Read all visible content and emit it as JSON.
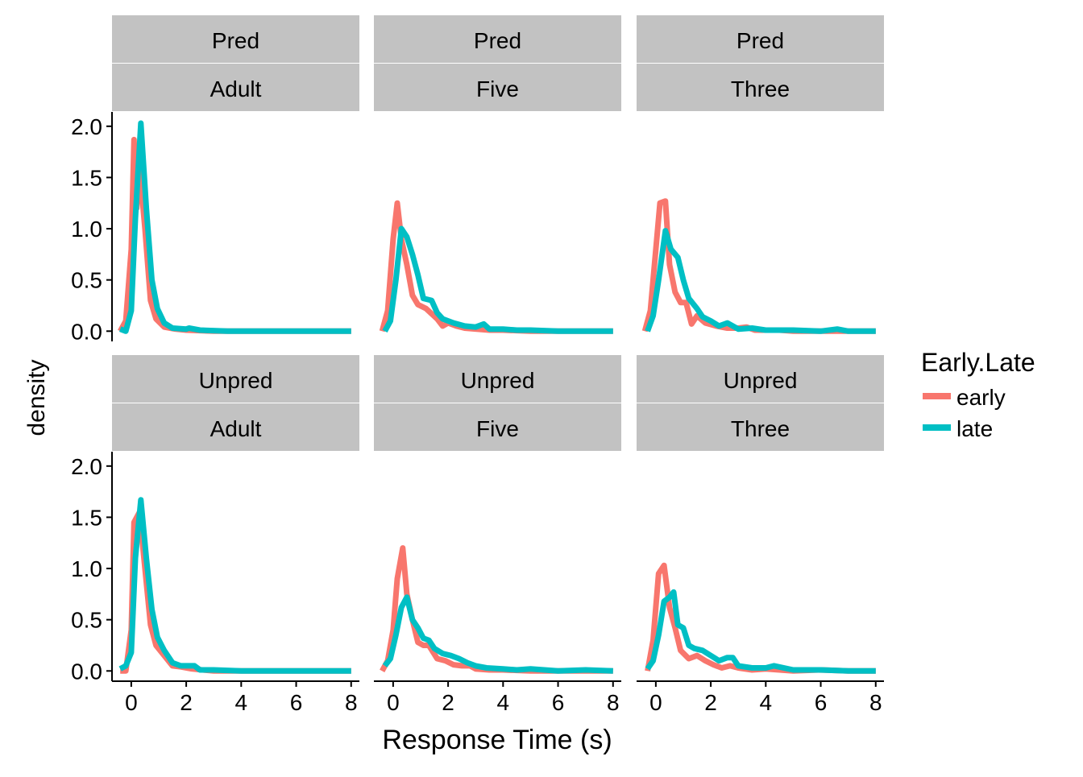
{
  "chart_data": {
    "type": "line",
    "xlabel": "Response Time (s)",
    "ylabel": "density",
    "xlim": [
      -0.7,
      8.3
    ],
    "ylim": [
      -0.1,
      2.14
    ],
    "x_ticks": [
      0,
      2,
      4,
      6,
      8
    ],
    "y_ticks": [
      0.0,
      0.5,
      1.0,
      1.5,
      2.0
    ],
    "x_tick_labels": [
      "0",
      "2",
      "4",
      "6",
      "8"
    ],
    "y_tick_labels": [
      "0.0",
      "0.5",
      "1.0",
      "1.5",
      "2.0"
    ],
    "legend": {
      "title": "Early.Late",
      "position": "right",
      "entries": [
        {
          "label": "early",
          "color": "#F8766D"
        },
        {
          "label": "late",
          "color": "#00BFC4"
        }
      ]
    },
    "series_colors": {
      "early": "#F8766D",
      "late": "#00BFC4"
    },
    "panels": [
      {
        "condition": "Pred",
        "group": "Adult",
        "series": {
          "early": [
            [
              -0.4,
              0.0
            ],
            [
              -0.2,
              0.1
            ],
            [
              0.0,
              0.8
            ],
            [
              0.1,
              1.87
            ],
            [
              0.2,
              1.2
            ],
            [
              0.3,
              1.6
            ],
            [
              0.5,
              1.0
            ],
            [
              0.7,
              0.3
            ],
            [
              0.9,
              0.12
            ],
            [
              1.2,
              0.04
            ],
            [
              1.6,
              0.02
            ],
            [
              2.0,
              0.01
            ],
            [
              3.0,
              0.0
            ],
            [
              8.0,
              0.0
            ]
          ],
          "late": [
            [
              -0.4,
              0.02
            ],
            [
              -0.2,
              0.0
            ],
            [
              0.0,
              0.2
            ],
            [
              0.15,
              1.1
            ],
            [
              0.35,
              2.03
            ],
            [
              0.55,
              1.2
            ],
            [
              0.75,
              0.5
            ],
            [
              0.95,
              0.22
            ],
            [
              1.2,
              0.08
            ],
            [
              1.5,
              0.03
            ],
            [
              2.0,
              0.02
            ],
            [
              2.1,
              0.03
            ],
            [
              2.5,
              0.01
            ],
            [
              3.5,
              0.0
            ],
            [
              8.0,
              0.0
            ]
          ]
        }
      },
      {
        "condition": "Pred",
        "group": "Five",
        "series": {
          "early": [
            [
              -0.4,
              0.0
            ],
            [
              -0.2,
              0.2
            ],
            [
              0.0,
              0.9
            ],
            [
              0.15,
              1.25
            ],
            [
              0.3,
              0.9
            ],
            [
              0.5,
              0.65
            ],
            [
              0.7,
              0.35
            ],
            [
              0.9,
              0.26
            ],
            [
              1.2,
              0.22
            ],
            [
              1.6,
              0.12
            ],
            [
              1.8,
              0.05
            ],
            [
              2.0,
              0.08
            ],
            [
              2.3,
              0.05
            ],
            [
              2.6,
              0.03
            ],
            [
              3.0,
              0.02
            ],
            [
              3.5,
              0.01
            ],
            [
              4.0,
              0.01
            ],
            [
              5.0,
              0.0
            ],
            [
              8.0,
              0.0
            ]
          ],
          "late": [
            [
              -0.3,
              0.0
            ],
            [
              -0.1,
              0.1
            ],
            [
              0.1,
              0.5
            ],
            [
              0.3,
              1.0
            ],
            [
              0.5,
              0.92
            ],
            [
              0.7,
              0.75
            ],
            [
              0.9,
              0.55
            ],
            [
              1.1,
              0.32
            ],
            [
              1.4,
              0.3
            ],
            [
              1.6,
              0.18
            ],
            [
              1.8,
              0.12
            ],
            [
              2.2,
              0.08
            ],
            [
              2.6,
              0.05
            ],
            [
              3.0,
              0.04
            ],
            [
              3.3,
              0.07
            ],
            [
              3.5,
              0.02
            ],
            [
              4.0,
              0.02
            ],
            [
              4.5,
              0.01
            ],
            [
              5.0,
              0.01
            ],
            [
              6.0,
              0.0
            ],
            [
              8.0,
              0.0
            ]
          ]
        }
      },
      {
        "condition": "Pred",
        "group": "Three",
        "series": {
          "early": [
            [
              -0.4,
              0.0
            ],
            [
              -0.2,
              0.2
            ],
            [
              0.0,
              0.8
            ],
            [
              0.15,
              1.25
            ],
            [
              0.35,
              1.27
            ],
            [
              0.5,
              0.65
            ],
            [
              0.7,
              0.38
            ],
            [
              0.9,
              0.28
            ],
            [
              1.1,
              0.28
            ],
            [
              1.3,
              0.07
            ],
            [
              1.5,
              0.15
            ],
            [
              1.8,
              0.08
            ],
            [
              2.2,
              0.05
            ],
            [
              2.6,
              0.03
            ],
            [
              3.0,
              0.03
            ],
            [
              3.3,
              0.04
            ],
            [
              3.6,
              0.01
            ],
            [
              4.5,
              0.01
            ],
            [
              5.0,
              0.0
            ],
            [
              8.0,
              0.0
            ]
          ],
          "late": [
            [
              -0.3,
              0.0
            ],
            [
              -0.1,
              0.15
            ],
            [
              0.1,
              0.5
            ],
            [
              0.35,
              0.98
            ],
            [
              0.55,
              0.8
            ],
            [
              0.8,
              0.72
            ],
            [
              1.0,
              0.5
            ],
            [
              1.2,
              0.32
            ],
            [
              1.5,
              0.22
            ],
            [
              1.7,
              0.14
            ],
            [
              2.0,
              0.1
            ],
            [
              2.3,
              0.05
            ],
            [
              2.6,
              0.08
            ],
            [
              3.0,
              0.02
            ],
            [
              3.5,
              0.03
            ],
            [
              4.0,
              0.01
            ],
            [
              5.0,
              0.01
            ],
            [
              6.0,
              0.0
            ],
            [
              6.6,
              0.02
            ],
            [
              7.0,
              0.0
            ],
            [
              8.0,
              0.0
            ]
          ]
        }
      },
      {
        "condition": "Unpred",
        "group": "Adult",
        "series": {
          "early": [
            [
              -0.4,
              0.0
            ],
            [
              -0.2,
              0.0
            ],
            [
              0.0,
              0.4
            ],
            [
              0.1,
              1.45
            ],
            [
              0.3,
              1.55
            ],
            [
              0.5,
              1.0
            ],
            [
              0.7,
              0.45
            ],
            [
              0.9,
              0.25
            ],
            [
              1.2,
              0.15
            ],
            [
              1.5,
              0.05
            ],
            [
              1.8,
              0.04
            ],
            [
              2.2,
              0.02
            ],
            [
              3.0,
              0.0
            ],
            [
              8.0,
              0.0
            ]
          ],
          "late": [
            [
              -0.4,
              0.02
            ],
            [
              -0.2,
              0.05
            ],
            [
              0.0,
              0.18
            ],
            [
              0.15,
              1.1
            ],
            [
              0.35,
              1.67
            ],
            [
              0.55,
              1.1
            ],
            [
              0.75,
              0.6
            ],
            [
              0.95,
              0.33
            ],
            [
              1.2,
              0.2
            ],
            [
              1.5,
              0.08
            ],
            [
              1.8,
              0.05
            ],
            [
              2.0,
              0.05
            ],
            [
              2.3,
              0.05
            ],
            [
              2.5,
              0.01
            ],
            [
              3.0,
              0.01
            ],
            [
              4.0,
              0.0
            ],
            [
              8.0,
              0.0
            ]
          ]
        }
      },
      {
        "condition": "Unpred",
        "group": "Five",
        "series": {
          "early": [
            [
              -0.4,
              0.0
            ],
            [
              -0.2,
              0.1
            ],
            [
              0.0,
              0.4
            ],
            [
              0.15,
              0.9
            ],
            [
              0.35,
              1.2
            ],
            [
              0.5,
              0.75
            ],
            [
              0.7,
              0.5
            ],
            [
              0.9,
              0.28
            ],
            [
              1.1,
              0.25
            ],
            [
              1.3,
              0.25
            ],
            [
              1.6,
              0.12
            ],
            [
              1.9,
              0.1
            ],
            [
              2.2,
              0.06
            ],
            [
              2.5,
              0.05
            ],
            [
              2.8,
              0.05
            ],
            [
              3.0,
              0.02
            ],
            [
              3.5,
              0.01
            ],
            [
              4.0,
              0.01
            ],
            [
              5.0,
              0.0
            ],
            [
              8.0,
              0.0
            ]
          ],
          "late": [
            [
              -0.3,
              0.05
            ],
            [
              -0.1,
              0.12
            ],
            [
              0.1,
              0.35
            ],
            [
              0.3,
              0.62
            ],
            [
              0.5,
              0.72
            ],
            [
              0.7,
              0.5
            ],
            [
              0.9,
              0.42
            ],
            [
              1.1,
              0.32
            ],
            [
              1.3,
              0.3
            ],
            [
              1.5,
              0.22
            ],
            [
              1.8,
              0.17
            ],
            [
              2.1,
              0.15
            ],
            [
              2.4,
              0.12
            ],
            [
              2.7,
              0.08
            ],
            [
              3.0,
              0.05
            ],
            [
              3.4,
              0.03
            ],
            [
              4.0,
              0.02
            ],
            [
              4.5,
              0.01
            ],
            [
              5.0,
              0.02
            ],
            [
              6.0,
              0.0
            ],
            [
              7.0,
              0.01
            ],
            [
              8.0,
              0.0
            ]
          ]
        }
      },
      {
        "condition": "Unpred",
        "group": "Three",
        "series": {
          "early": [
            [
              -0.3,
              0.0
            ],
            [
              -0.1,
              0.3
            ],
            [
              0.1,
              0.95
            ],
            [
              0.3,
              1.03
            ],
            [
              0.5,
              0.62
            ],
            [
              0.7,
              0.42
            ],
            [
              0.9,
              0.2
            ],
            [
              1.2,
              0.12
            ],
            [
              1.5,
              0.15
            ],
            [
              1.8,
              0.1
            ],
            [
              2.1,
              0.06
            ],
            [
              2.4,
              0.03
            ],
            [
              2.7,
              0.05
            ],
            [
              3.0,
              0.03
            ],
            [
              3.5,
              0.01
            ],
            [
              4.0,
              0.02
            ],
            [
              5.0,
              0.0
            ],
            [
              6.0,
              0.01
            ],
            [
              7.0,
              0.0
            ],
            [
              8.0,
              0.0
            ]
          ],
          "late": [
            [
              -0.3,
              0.02
            ],
            [
              -0.1,
              0.1
            ],
            [
              0.1,
              0.35
            ],
            [
              0.3,
              0.68
            ],
            [
              0.5,
              0.72
            ],
            [
              0.65,
              0.77
            ],
            [
              0.8,
              0.45
            ],
            [
              1.0,
              0.42
            ],
            [
              1.2,
              0.25
            ],
            [
              1.4,
              0.22
            ],
            [
              1.7,
              0.2
            ],
            [
              2.0,
              0.15
            ],
            [
              2.3,
              0.1
            ],
            [
              2.6,
              0.13
            ],
            [
              2.8,
              0.13
            ],
            [
              3.0,
              0.05
            ],
            [
              3.5,
              0.03
            ],
            [
              4.0,
              0.03
            ],
            [
              4.3,
              0.05
            ],
            [
              5.0,
              0.01
            ],
            [
              6.0,
              0.01
            ],
            [
              7.0,
              0.0
            ],
            [
              8.0,
              0.0
            ]
          ]
        }
      }
    ]
  }
}
